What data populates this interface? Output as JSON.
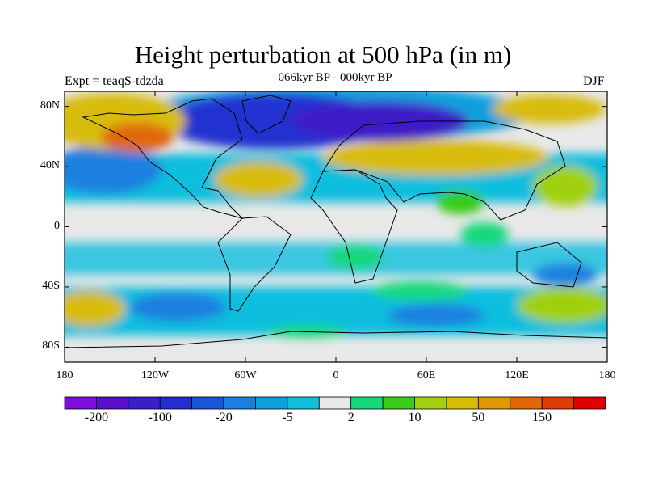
{
  "title": "Height perturbation at 500 hPa (in m)",
  "subtitle": "066kyr BP - 000kyr BP",
  "experiment": "Expt = teaqS-tdzda",
  "season": "DJF",
  "map": {
    "lon_range": [
      -180,
      180
    ],
    "lat_range": [
      -90,
      90
    ],
    "lat_ticks": [
      {
        "value": 80,
        "label": "80N"
      },
      {
        "value": 40,
        "label": "40N"
      },
      {
        "value": 0,
        "label": "0"
      },
      {
        "value": -40,
        "label": "40S"
      },
      {
        "value": -80,
        "label": "80S"
      }
    ],
    "lon_ticks": [
      {
        "value": -180,
        "label": "180"
      },
      {
        "value": -120,
        "label": "120W"
      },
      {
        "value": -60,
        "label": "60W"
      },
      {
        "value": 0,
        "label": "0"
      },
      {
        "value": 60,
        "label": "60E"
      },
      {
        "value": 120,
        "label": "120E"
      },
      {
        "value": 180,
        "label": "180"
      }
    ]
  },
  "colorbar": {
    "colors": [
      "#7b0fd8",
      "#5a10c8",
      "#3c1ec8",
      "#2030d0",
      "#1855d8",
      "#1a80e0",
      "#10a0dc",
      "#10bede",
      "#e8e8e8",
      "#18d87c",
      "#38cc18",
      "#a0d010",
      "#d8bc08",
      "#e09808",
      "#e06808",
      "#e03c08",
      "#e00000"
    ],
    "labels": [
      {
        "boundary": 1,
        "text": "-200"
      },
      {
        "boundary": 3,
        "text": "-100"
      },
      {
        "boundary": 5,
        "text": "-20"
      },
      {
        "boundary": 7,
        "text": "-5"
      },
      {
        "boundary": 9,
        "text": "2"
      },
      {
        "boundary": 11,
        "text": "10"
      },
      {
        "boundary": 13,
        "text": "50"
      },
      {
        "boundary": 15,
        "text": "150"
      }
    ]
  }
}
